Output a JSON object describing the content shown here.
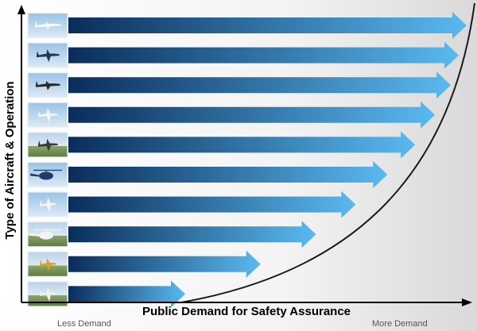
{
  "axes": {
    "y_title": "Type of Aircraft & Operation",
    "x_title": "Public Demand for Safety Assurance",
    "x_min_label": "Less Demand",
    "x_max_label": "More Demand"
  },
  "colors": {
    "arrow_start": "#0a2d5a",
    "arrow_end": "#5ab9f0",
    "curve": "#1a1a1a",
    "axis": "#000000"
  },
  "rows": [
    {
      "icon": "airliner-icon",
      "demand": 1.0
    },
    {
      "icon": "turboprop-airliner-icon",
      "demand": 0.98
    },
    {
      "icon": "cargo-jet-icon",
      "demand": 0.96
    },
    {
      "icon": "business-jet-icon",
      "demand": 0.92
    },
    {
      "icon": "light-twin-icon",
      "demand": 0.87
    },
    {
      "icon": "helicopter-icon",
      "demand": 0.8
    },
    {
      "icon": "light-aircraft-icon",
      "demand": 0.72
    },
    {
      "icon": "aerial-work-helicopter-icon",
      "demand": 0.62
    },
    {
      "icon": "firefighting-aircraft-icon",
      "demand": 0.48
    },
    {
      "icon": "crop-duster-icon",
      "demand": 0.29
    }
  ]
}
